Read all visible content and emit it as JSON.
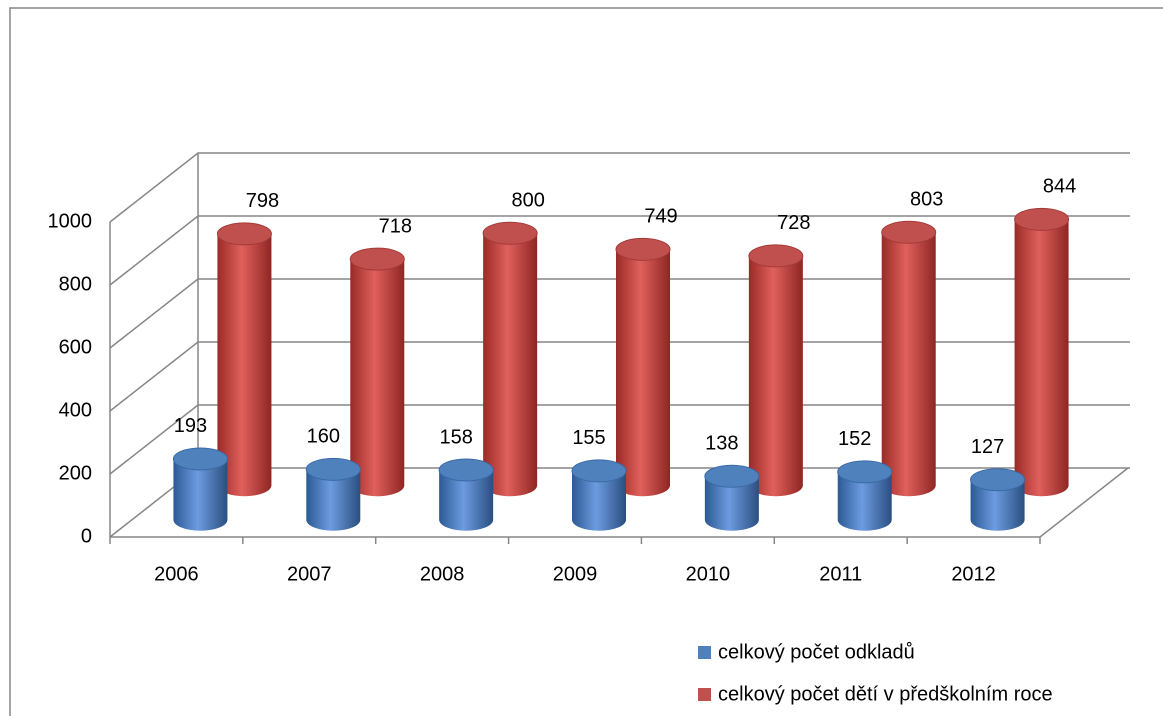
{
  "chart_data": {
    "type": "bar3d",
    "categories": [
      "2006",
      "2007",
      "2008",
      "2009",
      "2010",
      "2011",
      "2012"
    ],
    "series": [
      {
        "name": "celkový počet odkladů",
        "color": "#4f81bd",
        "values": [
          193,
          160,
          158,
          155,
          138,
          152,
          127
        ]
      },
      {
        "name": "celkový počet dětí v předškolním roce",
        "color": "#c0504d",
        "values": [
          798,
          718,
          800,
          749,
          728,
          803,
          844
        ]
      }
    ],
    "ylim": [
      0,
      1000
    ],
    "yticks": [
      0,
      200,
      400,
      600,
      800,
      1000
    ],
    "grid": true,
    "legend": "bottom-right"
  }
}
